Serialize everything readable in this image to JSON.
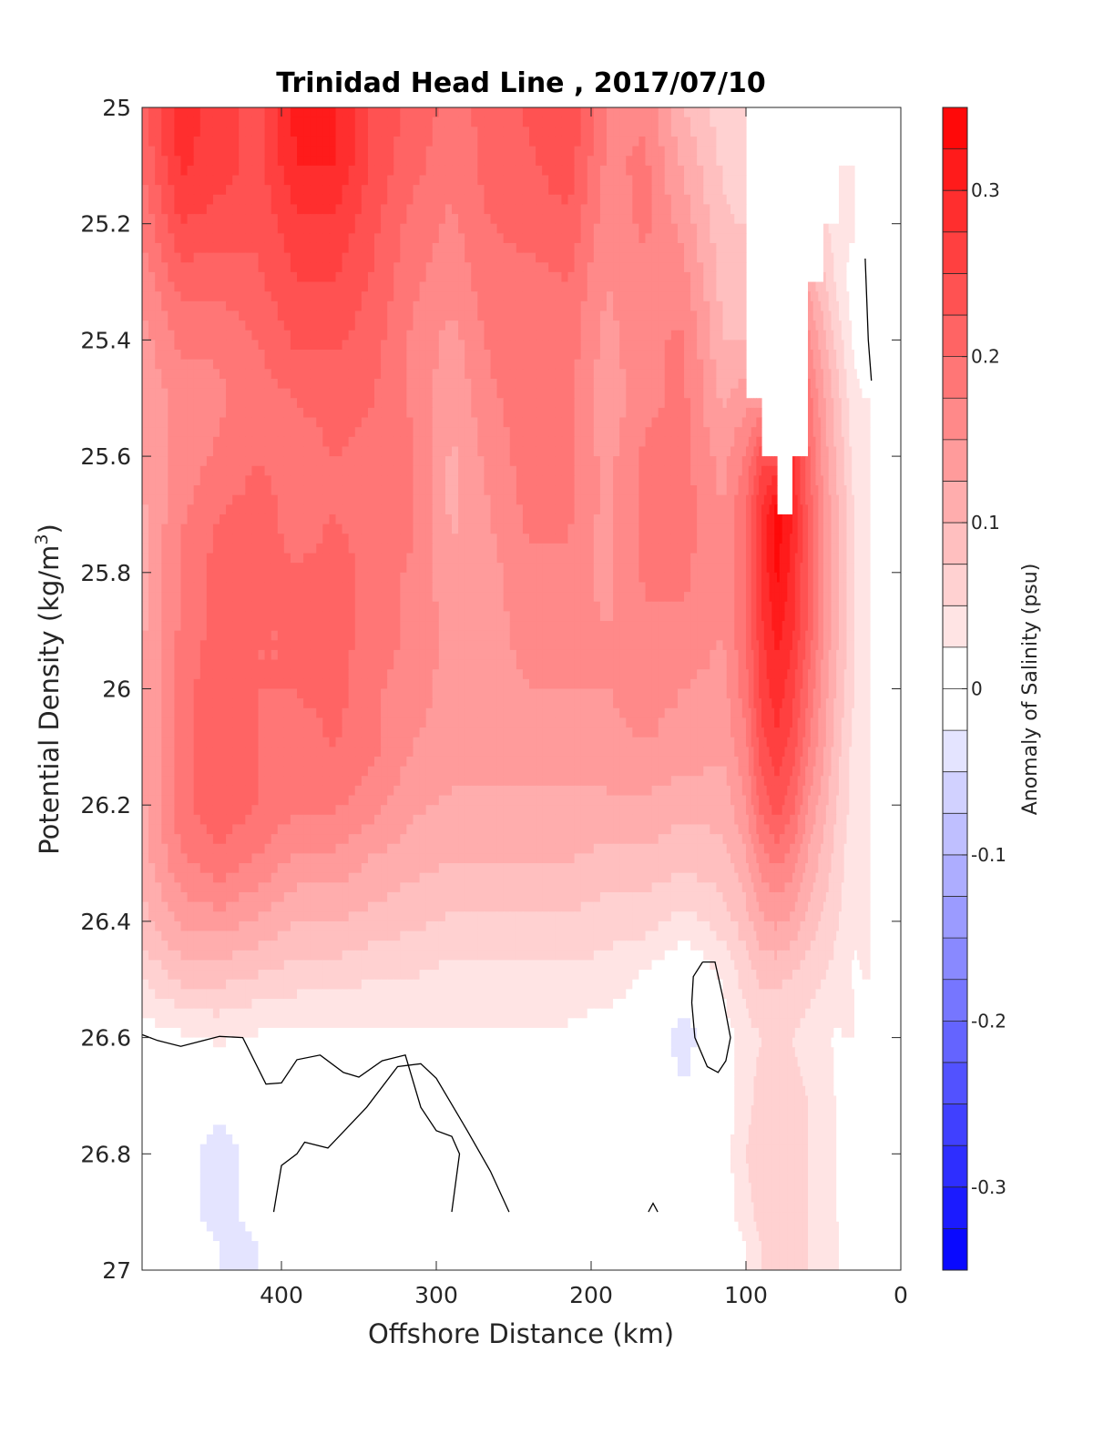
{
  "chart_data": {
    "type": "contourf",
    "title": "Trinidad Head Line , 2017/07/10",
    "xlabel": "Offshore Distance (km)",
    "ylabel_main": "Potential Density (kg/m",
    "ylabel_sup": "3",
    "ylabel_close": ")",
    "xlim": [
      490,
      0
    ],
    "ylim": [
      25,
      27
    ],
    "x_reversed": true,
    "y_reversed": true,
    "x_ticks": [
      400,
      300,
      200,
      100,
      0
    ],
    "y_ticks": [
      25,
      25.2,
      25.4,
      25.6,
      25.8,
      26,
      26.2,
      26.4,
      26.6,
      26.8,
      27
    ],
    "x_tick_labels": [
      "400",
      "300",
      "200",
      "100",
      "0"
    ],
    "y_tick_labels": [
      "25",
      "25.2",
      "25.4",
      "25.6",
      "25.8",
      "26",
      "26.2",
      "26.4",
      "26.6",
      "26.8",
      "27"
    ],
    "grid": false,
    "colorbar": {
      "label": "Anomaly of Salinity (psu)",
      "range": [
        -0.35,
        0.35
      ],
      "step": 0.025,
      "ticks": [
        0.3,
        0.2,
        0.1,
        0,
        -0.1,
        -0.2,
        -0.3
      ],
      "tick_labels": [
        "0.3",
        "0.2",
        "0.1",
        "0",
        "-0.1",
        "-0.2",
        "-0.3"
      ],
      "positive_color": "#ff0000",
      "negative_color": "#0000ff",
      "zero_color": "#ffffff"
    },
    "grid_x": [
      490,
      465,
      440,
      415,
      390,
      365,
      340,
      315,
      290,
      265,
      240,
      215,
      190,
      165,
      140,
      115,
      100,
      90,
      80,
      70,
      60,
      50,
      40,
      30,
      20
    ],
    "grid_y": [
      25,
      25.1,
      25.2,
      25.3,
      25.4,
      25.5,
      25.6,
      25.7,
      25.8,
      25.9,
      26,
      26.1,
      26.2,
      26.3,
      26.4,
      26.5,
      26.6,
      26.7,
      26.8,
      26.9
    ],
    "salinity_anomaly": [
      [
        0.22,
        0.29,
        0.26,
        0.24,
        0.31,
        0.3,
        0.24,
        0.22,
        0.19,
        0.21,
        0.23,
        0.25,
        0.17,
        0.17,
        0.1,
        0.06,
        null,
        null,
        null,
        null,
        null,
        null,
        null,
        null,
        null
      ],
      [
        0.2,
        0.28,
        0.26,
        0.24,
        0.3,
        0.3,
        0.24,
        0.21,
        0.18,
        0.21,
        0.22,
        0.24,
        0.17,
        0.18,
        0.12,
        0.07,
        null,
        null,
        null,
        null,
        null,
        null,
        0.03,
        null,
        null
      ],
      [
        0.18,
        0.25,
        0.24,
        0.23,
        0.27,
        0.27,
        0.23,
        0.19,
        0.17,
        0.2,
        0.21,
        0.22,
        0.16,
        0.18,
        0.14,
        0.08,
        null,
        null,
        null,
        null,
        null,
        0.06,
        0.03,
        null,
        null
      ],
      [
        0.16,
        0.21,
        0.21,
        0.22,
        0.25,
        0.25,
        0.22,
        0.18,
        0.16,
        0.19,
        0.19,
        0.2,
        0.15,
        0.17,
        0.16,
        0.09,
        null,
        null,
        null,
        null,
        0.12,
        0.08,
        0.04,
        0.01,
        null
      ],
      [
        0.14,
        0.18,
        0.18,
        0.2,
        0.23,
        0.23,
        0.21,
        0.17,
        0.14,
        0.18,
        0.18,
        0.19,
        0.14,
        0.17,
        0.18,
        0.1,
        null,
        null,
        null,
        null,
        0.16,
        0.11,
        0.06,
        0.02,
        null
      ],
      [
        0.13,
        0.16,
        0.17,
        0.19,
        0.2,
        0.21,
        0.2,
        0.17,
        0.13,
        0.17,
        0.19,
        0.18,
        0.13,
        0.17,
        0.18,
        0.12,
        0.14,
        null,
        null,
        null,
        0.19,
        0.13,
        0.08,
        0.03,
        null
      ],
      [
        0.13,
        0.16,
        0.18,
        0.2,
        0.19,
        0.2,
        0.19,
        0.18,
        0.12,
        0.16,
        0.19,
        0.18,
        0.14,
        0.18,
        0.18,
        0.14,
        0.18,
        0.24,
        null,
        0.28,
        0.21,
        0.14,
        0.09,
        0.04,
        null
      ],
      [
        0.12,
        0.17,
        0.2,
        0.21,
        0.19,
        0.2,
        0.19,
        0.18,
        0.12,
        0.15,
        0.18,
        0.18,
        0.14,
        0.18,
        0.19,
        0.15,
        0.2,
        0.28,
        0.34,
        0.3,
        0.22,
        0.15,
        0.1,
        0.05,
        null
      ],
      [
        0.12,
        0.18,
        0.21,
        0.21,
        0.2,
        0.21,
        0.19,
        0.17,
        0.13,
        0.14,
        0.17,
        0.17,
        0.14,
        0.18,
        0.18,
        0.15,
        0.2,
        0.28,
        0.33,
        0.29,
        0.22,
        0.15,
        0.1,
        0.05,
        null
      ],
      [
        0.12,
        0.18,
        0.21,
        0.2,
        0.2,
        0.21,
        0.19,
        0.17,
        0.14,
        0.14,
        0.16,
        0.16,
        0.15,
        0.17,
        0.17,
        0.15,
        0.2,
        0.27,
        0.31,
        0.28,
        0.22,
        0.15,
        0.1,
        0.05,
        null
      ],
      [
        0.12,
        0.19,
        0.22,
        0.2,
        0.2,
        0.21,
        0.18,
        0.16,
        0.14,
        0.14,
        0.15,
        0.15,
        0.15,
        0.16,
        0.15,
        0.14,
        0.19,
        0.26,
        0.29,
        0.26,
        0.2,
        0.14,
        0.09,
        0.05,
        null
      ],
      [
        0.12,
        0.19,
        0.22,
        0.2,
        0.19,
        0.2,
        0.18,
        0.15,
        0.14,
        0.14,
        0.14,
        0.14,
        0.14,
        0.15,
        0.14,
        0.13,
        0.17,
        0.24,
        0.27,
        0.24,
        0.18,
        0.13,
        0.08,
        0.04,
        null
      ],
      [
        0.12,
        0.19,
        0.22,
        0.2,
        0.18,
        0.18,
        0.16,
        0.13,
        0.12,
        0.12,
        0.12,
        0.12,
        0.12,
        0.12,
        0.11,
        0.11,
        0.15,
        0.21,
        0.24,
        0.21,
        0.15,
        0.11,
        0.07,
        0.04,
        null
      ],
      [
        0.11,
        0.17,
        0.19,
        0.17,
        0.14,
        0.14,
        0.12,
        0.11,
        0.1,
        0.1,
        0.1,
        0.1,
        0.09,
        0.09,
        0.08,
        0.09,
        0.12,
        0.16,
        0.18,
        0.16,
        0.12,
        0.09,
        0.06,
        0.03,
        null
      ],
      [
        0.09,
        0.13,
        0.14,
        0.12,
        0.1,
        0.1,
        0.09,
        0.08,
        0.07,
        0.07,
        0.07,
        0.07,
        0.06,
        0.06,
        0.04,
        0.06,
        0.09,
        0.12,
        0.13,
        0.12,
        0.09,
        0.07,
        0.05,
        0.03,
        null
      ],
      [
        0.05,
        0.08,
        0.08,
        0.07,
        0.06,
        0.06,
        0.05,
        0.05,
        0.04,
        0.04,
        0.04,
        0.04,
        0.04,
        0.02,
        -0.01,
        0.03,
        0.06,
        0.08,
        0.08,
        0.07,
        0.06,
        0.05,
        0.04,
        0.02,
        null
      ],
      [
        0.01,
        0.02,
        0.03,
        0.02,
        0.02,
        0.02,
        0.02,
        0.02,
        0.02,
        0.02,
        0.02,
        0.02,
        0.01,
        0.0,
        -0.04,
        0.01,
        0.04,
        0.05,
        0.05,
        0.05,
        0.04,
        0.03,
        0.02,
        null,
        null
      ],
      [
        -0.01,
        -0.01,
        -0.02,
        -0.01,
        0.0,
        -0.01,
        -0.01,
        -0.01,
        -0.01,
        0.0,
        0.01,
        0.0,
        -0.01,
        -0.01,
        -0.02,
        0.01,
        0.04,
        0.06,
        0.06,
        0.06,
        0.05,
        0.04,
        0.02,
        null,
        null
      ],
      [
        -0.01,
        -0.02,
        -0.03,
        -0.02,
        -0.01,
        -0.01,
        -0.02,
        -0.01,
        -0.01,
        0.0,
        0.0,
        -0.01,
        -0.02,
        -0.01,
        0.0,
        0.01,
        0.05,
        0.07,
        0.07,
        0.06,
        0.05,
        0.04,
        0.02,
        null,
        null
      ],
      [
        -0.01,
        -0.02,
        -0.03,
        -0.02,
        -0.01,
        -0.01,
        -0.02,
        -0.01,
        -0.01,
        0.0,
        0.0,
        -0.01,
        -0.02,
        -0.01,
        0.0,
        0.01,
        0.04,
        0.06,
        0.06,
        0.06,
        0.05,
        0.04,
        0.02,
        null,
        null
      ]
    ],
    "zero_contour_lines": [
      [
        [
          490,
          26.595
        ],
        [
          480,
          26.605
        ],
        [
          465,
          26.615
        ],
        [
          440,
          26.598
        ],
        [
          425,
          26.6
        ],
        [
          410,
          26.68
        ],
        [
          400,
          26.678
        ],
        [
          390,
          26.638
        ],
        [
          375,
          26.63
        ],
        [
          360,
          26.66
        ],
        [
          350,
          26.668
        ],
        [
          335,
          26.64
        ],
        [
          320,
          26.63
        ],
        [
          310,
          26.72
        ],
        [
          300,
          26.76
        ],
        [
          290,
          26.77
        ],
        [
          285,
          26.8
        ],
        [
          290,
          26.9
        ]
      ],
      [
        [
          253,
          26.9
        ],
        [
          265,
          26.83
        ],
        [
          280,
          26.76
        ],
        [
          300,
          26.67
        ],
        [
          310,
          26.645
        ],
        [
          325,
          26.65
        ],
        [
          345,
          26.72
        ],
        [
          370,
          26.79
        ],
        [
          385,
          26.78
        ],
        [
          390,
          26.8
        ],
        [
          400,
          26.82
        ],
        [
          405,
          26.9
        ]
      ],
      [
        [
          128,
          26.47
        ],
        [
          120,
          26.47
        ],
        [
          115,
          26.53
        ],
        [
          110,
          26.6
        ],
        [
          113,
          26.64
        ],
        [
          118,
          26.66
        ],
        [
          125,
          26.65
        ],
        [
          133,
          26.6
        ],
        [
          135,
          26.54
        ],
        [
          134,
          26.495
        ],
        [
          128,
          26.47
        ]
      ],
      [
        [
          157,
          26.9
        ],
        [
          160,
          26.885
        ],
        [
          163,
          26.9
        ]
      ],
      [
        [
          23,
          25.26
        ],
        [
          22,
          25.33
        ],
        [
          21,
          25.4
        ],
        [
          19,
          25.47
        ]
      ]
    ]
  }
}
